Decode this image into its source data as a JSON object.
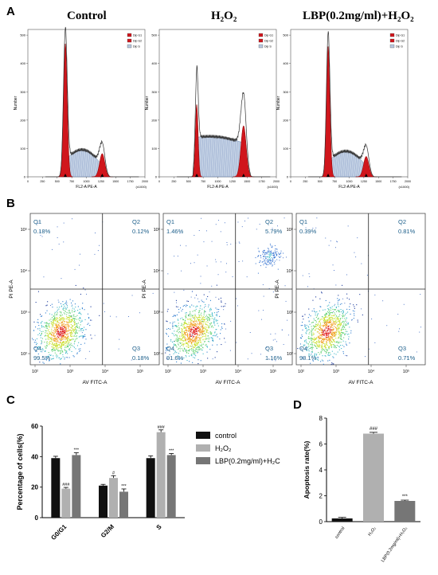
{
  "panels": {
    "a": "A",
    "b": "B",
    "c": "C",
    "d": "D"
  },
  "histograms": {
    "titles": [
      "Control",
      "H₂O₂",
      "LBP(0.2mg/ml)+H₂O₂"
    ],
    "legend": [
      "Dip G1",
      "Dip G2",
      "Dip S"
    ],
    "xlabel": "FL2-A PE-A",
    "xunit": "(x1000)",
    "ylabel": "Number",
    "xticks": [
      "0",
      "250",
      "500",
      "750",
      "1000",
      "1250",
      "1500",
      "1750",
      "2000"
    ],
    "yticks": [
      "0",
      "100",
      "200",
      "300",
      "400",
      "500"
    ],
    "colors": {
      "g1": "#d0161c",
      "g2": "#d0161c",
      "s": "#b8c8e0",
      "outline": "#333333"
    }
  },
  "flow": {
    "xlabel": "AV FITC-A",
    "ylabel": "PI PE-A",
    "quad_names": [
      "Q1",
      "Q2",
      "Q3",
      "Q4"
    ],
    "plots": [
      {
        "q1": "0.18%",
        "q2": "0.12%",
        "q3": "0.18%",
        "q4": "99.5%"
      },
      {
        "q1": "1.46%",
        "q2": "5.79%",
        "q3": "1.16%",
        "q4": "91.6%"
      },
      {
        "q1": "0.39%",
        "q2": "0.81%",
        "q3": "0.71%",
        "q4": "98.1%"
      }
    ],
    "label_color": "#1b5e8a"
  },
  "chart_data": [
    {
      "type": "bar",
      "panel": "C",
      "categories": [
        "G0/G1",
        "G2/M",
        "S"
      ],
      "series": [
        {
          "name": "control",
          "values": [
            39,
            21,
            39
          ],
          "errors": [
            1.2,
            0.8,
            1.5
          ],
          "color": "#111111"
        },
        {
          "name": "H₂O₂",
          "values": [
            19,
            26,
            56
          ],
          "errors": [
            0.8,
            1.5,
            1.5
          ],
          "color": "#b0b0b0"
        },
        {
          "name": "LBP(0.2mg/ml)+H₂C",
          "values": [
            41,
            17,
            41
          ],
          "errors": [
            1.5,
            1.8,
            1.0
          ],
          "color": "#767676"
        }
      ],
      "annotations": [
        [
          "",
          "",
          ""
        ],
        [
          "###",
          "#",
          "###"
        ],
        [
          "***",
          "***",
          "***"
        ]
      ],
      "ylabel": "Percentage of cells(%)",
      "ylim": [
        0,
        60
      ],
      "yticks": [
        "0",
        "20",
        "40",
        "60"
      ],
      "legend": "right"
    },
    {
      "type": "bar",
      "panel": "D",
      "categories": [
        "control",
        "H₂O₂",
        "LBP(0.2mg/ml)+H₂O₂"
      ],
      "values": [
        0.25,
        6.8,
        1.6
      ],
      "errors": [
        0.08,
        0.1,
        0.06
      ],
      "annotations": [
        "",
        "###",
        "***"
      ],
      "colors": [
        "#111111",
        "#b0b0b0",
        "#767676"
      ],
      "ylabel": "Apoptosis rate(%)",
      "ylim": [
        0,
        8
      ],
      "yticks": [
        "0",
        "2",
        "4",
        "6",
        "8"
      ]
    }
  ]
}
